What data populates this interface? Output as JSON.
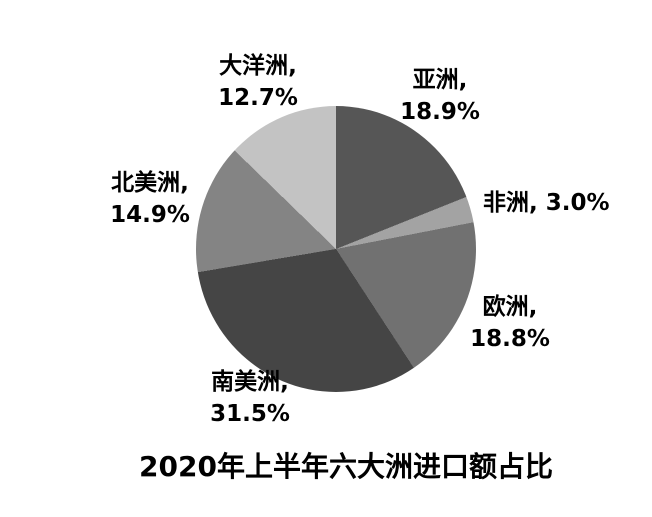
{
  "title": "2020年上半年六大洲进口额占比",
  "chart_data": {
    "type": "pie",
    "title": "2020年上半年六大洲进口额占比",
    "unit": "%",
    "start_angle_deg": 0,
    "direction": "clockwise",
    "categories": [
      "亚洲",
      "非洲",
      "欧洲",
      "南美洲",
      "北美洲",
      "大洋洲"
    ],
    "values": [
      18.9,
      3.0,
      18.8,
      31.5,
      14.9,
      12.7
    ],
    "slices": [
      {
        "label": "亚洲",
        "value": 18.9,
        "color": "#565656",
        "label_lines": [
          "亚洲,",
          "18.9%"
        ]
      },
      {
        "label": "非洲",
        "value": 3.0,
        "color": "#a3a3a3",
        "label_lines": [
          "非洲, 3.0%"
        ]
      },
      {
        "label": "欧洲",
        "value": 18.8,
        "color": "#717171",
        "label_lines": [
          "欧洲,",
          "18.8%"
        ]
      },
      {
        "label": "南美洲",
        "value": 31.5,
        "color": "#454545",
        "label_lines": [
          "南美洲,",
          "31.5%"
        ]
      },
      {
        "label": "北美洲",
        "value": 14.9,
        "color": "#848484",
        "label_lines": [
          "北美洲,",
          "14.9%"
        ]
      },
      {
        "label": "大洋洲",
        "value": 12.7,
        "color": "#c3c3c3",
        "label_lines": [
          "大洋洲,",
          "12.7%"
        ]
      }
    ],
    "legend": "none",
    "background_color": "#ffffff",
    "text_color": "#000000"
  }
}
